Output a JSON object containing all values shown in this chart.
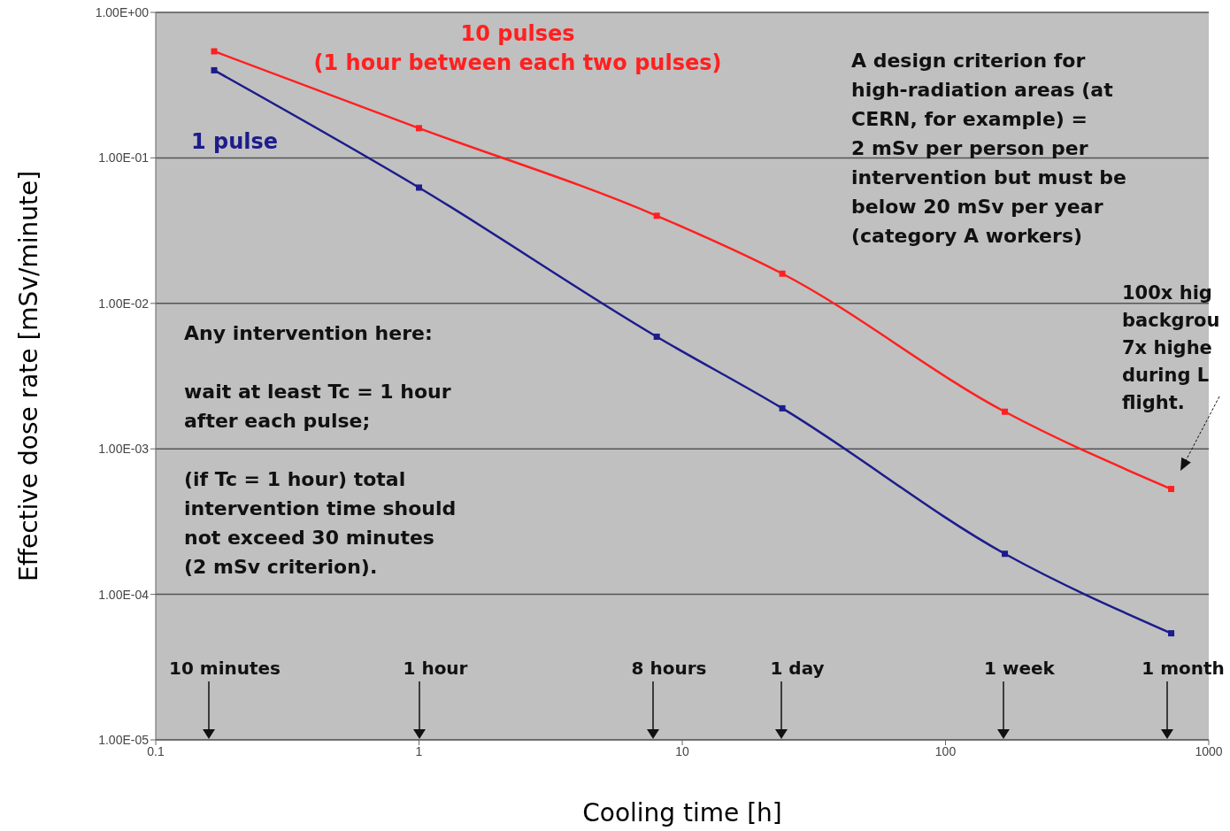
{
  "chart_data": {
    "type": "line",
    "xlabel": "Cooling time [h]",
    "ylabel": "Effective dose rate [mSv/minute]",
    "x": [
      0.1667,
      1,
      8,
      24,
      168,
      720
    ],
    "series": [
      {
        "name": "10 pulses\n(1 hour between each two pulses)",
        "color": "#ff2020",
        "values": [
          0.54,
          0.16,
          0.04,
          0.016,
          0.0018,
          0.00053
        ]
      },
      {
        "name": "1 pulse",
        "color": "#1c1c8c",
        "values": [
          0.4,
          0.0625,
          0.0059,
          0.0019,
          0.00019,
          5.4e-05
        ]
      }
    ],
    "log": "xy",
    "xlim": [
      0.1,
      1000
    ],
    "xticks": [
      0.1,
      1,
      10,
      100,
      1000
    ],
    "ylim": [
      1e-05,
      1
    ],
    "yticks": [
      {
        "value": 1e-05,
        "label": "1.00E-05"
      },
      {
        "value": 0.0001,
        "label": "1.00E-04"
      },
      {
        "value": 0.001,
        "label": "1.00E-03"
      },
      {
        "value": 0.01,
        "label": "1.00E-02"
      },
      {
        "value": 0.1,
        "label": "1.00E-01"
      },
      {
        "value": 1,
        "label": "1.00E+00"
      }
    ],
    "grid": "y",
    "marker": "square",
    "line_style": "solid",
    "annotations": [
      "A design criterion for\nhigh-radiation areas (at\nCERN, for example) =\n2 mSv per person per\nintervention but must be\nbelow 20 mSv per year\n(category A workers)",
      "Any intervention here:\n\nwait at least Tc = 1 hour\nafter each pulse;\n\n(if Tc = 1 hour) total\nintervention time should\nnot exceed 30 minutes\n(2 mSv criterion).",
      "100x hig\nbackgrou\n7x highe\nduring L\nflight.",
      "10 minutes",
      "1 hour",
      "8 hours",
      "1 day",
      "1 week",
      "1 month"
    ]
  }
}
